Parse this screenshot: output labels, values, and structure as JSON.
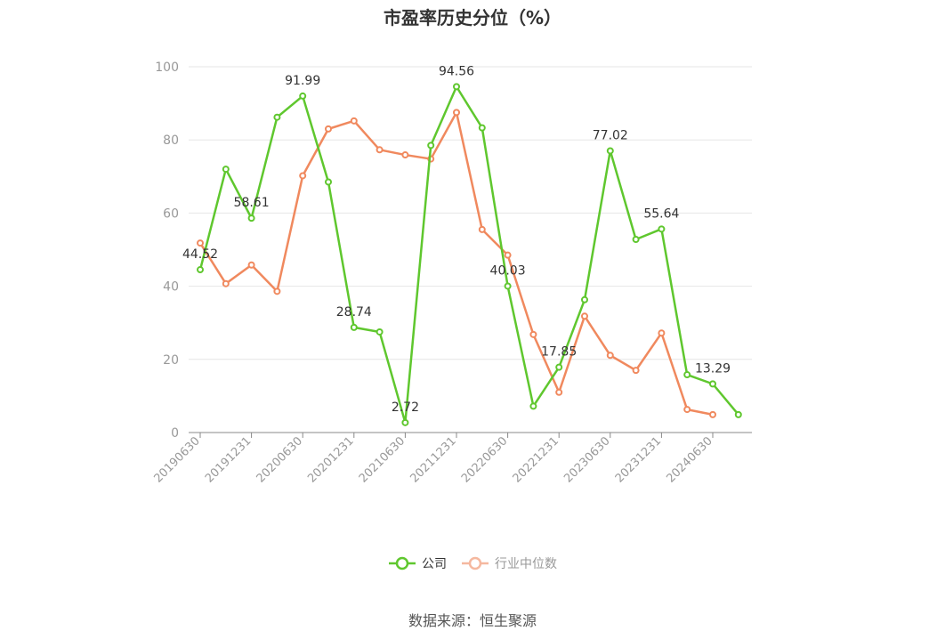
{
  "title": "市盈率历史分位（%）",
  "source": "数据来源：恒生聚源",
  "chart_data": {
    "type": "line",
    "title": "市盈率历史分位（%）",
    "ylim": [
      0,
      100
    ],
    "yticks": [
      0,
      20,
      40,
      60,
      80,
      100
    ],
    "grid": true,
    "legend_position": "bottom-center",
    "x_tick_labels": [
      "20190630",
      "20191231",
      "20200630",
      "20201231",
      "20210630",
      "20211231",
      "20220630",
      "20221231",
      "20230630",
      "20231231",
      "20240630"
    ],
    "series": [
      {
        "name": "公司",
        "color": "#5fc72e",
        "values": [
          44.52,
          72.0,
          58.61,
          86.2,
          91.99,
          68.5,
          28.74,
          27.5,
          2.72,
          78.5,
          94.56,
          83.3,
          40.03,
          7.2,
          17.85,
          36.3,
          77.02,
          52.8,
          55.64,
          15.8,
          13.29,
          4.9
        ],
        "labels": [
          "44.52",
          "",
          "58.61",
          "",
          "91.99",
          "",
          "28.74",
          "",
          "2.72",
          "",
          "94.56",
          "",
          "40.03",
          "",
          "17.85",
          "",
          "77.02",
          "",
          "55.64",
          "",
          "13.29",
          ""
        ]
      },
      {
        "name": "行业中位数",
        "color": "#f0895e",
        "values": [
          51.8,
          40.7,
          45.8,
          38.6,
          70.2,
          83.0,
          85.2,
          77.3,
          75.9,
          74.8,
          87.5,
          55.5,
          48.5,
          26.8,
          11.0,
          31.8,
          21.1,
          17.0,
          27.2,
          6.3,
          4.9,
          null
        ]
      }
    ]
  }
}
